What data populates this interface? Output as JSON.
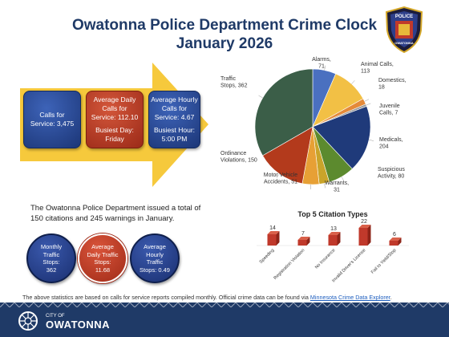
{
  "header": {
    "title_line1": "Owatonna Police Department Crime Clock",
    "title_line2": "January 2026",
    "badge_text_top": "POLICE",
    "badge_text_bottom": "OWATONNA"
  },
  "calls_summary": {
    "calls_for_service": "Calls for Service: 3,475",
    "avg_daily_line1": "Average Daily",
    "avg_daily_line2": "Calls for",
    "avg_daily_line3": "Service: 112.10",
    "busiest_day_line1": "Busiest Day:",
    "busiest_day_line2": "Friday",
    "avg_hourly_line1": "Average Hourly",
    "avg_hourly_line2": "Calls for",
    "avg_hourly_line3": "Service: 4.67",
    "busiest_hour_line1": "Busiest Hour:",
    "busiest_hour_line2": "5:00 PM"
  },
  "citations_text": "The Owatonna Police Department issued a total of 150 citations and 245 warnings in January.",
  "traffic_stops": {
    "monthly_line1": "Monthly",
    "monthly_line2": "Traffic",
    "monthly_line3": "Stops:",
    "monthly_line4": "362",
    "daily_line1": "Average",
    "daily_line2": "Daily Traffic",
    "daily_line3": "Stops:",
    "daily_line4": "11.68",
    "hourly_line1": "Average",
    "hourly_line2": "Hourly",
    "hourly_line3": "Traffic",
    "hourly_line4": "Stops: 0.49"
  },
  "chart_data": [
    {
      "type": "pie",
      "title": "",
      "slices": [
        {
          "label": "Alarms, 71",
          "value": 71,
          "color": "#4a70c0"
        },
        {
          "label": "Animal Calls, 113",
          "value": 113,
          "color": "#f2c045"
        },
        {
          "label": "Domestics, 18",
          "value": 18,
          "color": "#e48a3a"
        },
        {
          "label": "Juvenile Calls, 7",
          "value": 7,
          "color": "#9b9b9b"
        },
        {
          "label": "Medicals, 204",
          "value": 204,
          "color": "#1f3a7a"
        },
        {
          "label": "Suspicious Activity, 80",
          "value": 80,
          "color": "#5c8a2e"
        },
        {
          "label": "Warrants, 31",
          "value": 31,
          "color": "#c9a42a"
        },
        {
          "label": "Motor Vehicle Accidents, 51",
          "value": 51,
          "color": "#e7a035"
        },
        {
          "label": "Ordinance Violations, 150",
          "value": 150,
          "color": "#b33a1c"
        },
        {
          "label": "Traffic Stops, 362",
          "value": 362,
          "color": "#3b5e48"
        }
      ]
    },
    {
      "type": "bar",
      "title": "Top 5 Citation Types",
      "categories": [
        "Speeding",
        "Registration Violation",
        "No Insurance",
        "Invalid Driver's License",
        "Fail to Yield/Stop"
      ],
      "values": [
        14,
        7,
        13,
        22,
        6
      ],
      "color": "#c0392b"
    }
  ],
  "footnote": {
    "text": "The above statistics are based on calls for service reports compiled monthly.  Official crime data can be found via ",
    "link": "Minnesota Crime Data Explorer",
    "end": "."
  },
  "footer": {
    "city_label": "CITY OF",
    "city_name": "OWATONNA"
  }
}
